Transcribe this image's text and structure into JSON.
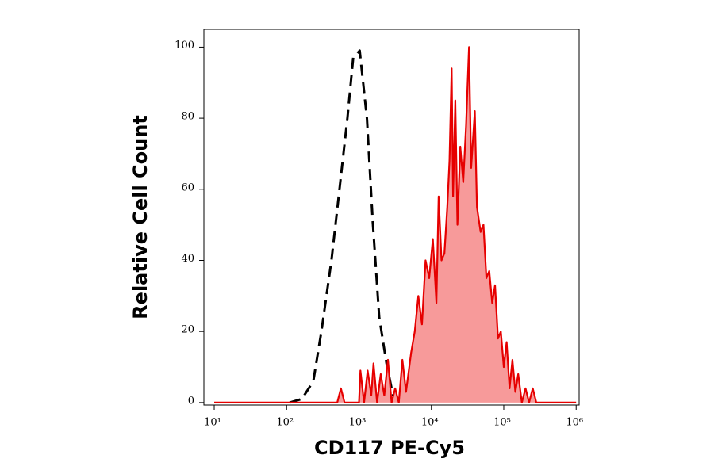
{
  "chart_data": {
    "type": "line",
    "x_label": "CD117 PE-Cy5",
    "y_label": "Relative Cell Count",
    "xscale": "log",
    "xlim": [
      7.2,
      1100000
    ],
    "ylim": [
      -0.7,
      105
    ],
    "xticks": [
      {
        "value": 10,
        "label": "10¹"
      },
      {
        "value": 100,
        "label": "10²"
      },
      {
        "value": 1000,
        "label": "10³"
      },
      {
        "value": 10000,
        "label": "10⁴"
      },
      {
        "value": 100000,
        "label": "10⁵"
      },
      {
        "value": 1000000,
        "label": "10⁶"
      }
    ],
    "yticks": [
      0,
      20,
      40,
      60,
      80,
      100
    ],
    "series": [
      {
        "color": "#000000",
        "dashed": true,
        "filled": false,
        "x": [
          110,
          162,
          234,
          302,
          417,
          537,
          692,
          832,
          1023,
          1288,
          1549,
          1905,
          2399,
          2951,
          4266
        ],
        "values": [
          0,
          1,
          6,
          20,
          40,
          60,
          80,
          97,
          99,
          80,
          51,
          24,
          11,
          2,
          0
        ]
      },
      {
        "color": "#e60000",
        "fill": "#f79a9a",
        "dashed": false,
        "filled": true,
        "x": [
          10,
          501,
          562,
          631,
          1000,
          1047,
          1175,
          1318,
          1479,
          1585,
          1778,
          1995,
          2239,
          2512,
          2818,
          3162,
          3548,
          3981,
          4467,
          5248,
          5888,
          6607,
          7413,
          8318,
          9333,
          10471,
          11749,
          12589,
          13804,
          15136,
          16596,
          17783,
          19055,
          19953,
          21380,
          22909,
          25119,
          27542,
          30200,
          33113,
          35481,
          39811,
          42658,
          47863,
          52481,
          57544,
          63096,
          69183,
          75858,
          83176,
          91201,
          100000,
          109648,
          120226,
          131826,
          144544,
          158489,
          177828,
          199526,
          223872,
          251189,
          281838,
          1000000
        ],
        "values": [
          0,
          0,
          4,
          0,
          0,
          9,
          0,
          9,
          2,
          11,
          0,
          8,
          2,
          12,
          0,
          4,
          0,
          12,
          3,
          14,
          20,
          30,
          22,
          40,
          35,
          46,
          28,
          58,
          40,
          42,
          55,
          68,
          94,
          58,
          85,
          50,
          72,
          62,
          78,
          100,
          66,
          82,
          55,
          48,
          50,
          35,
          37,
          28,
          33,
          18,
          20,
          10,
          17,
          4,
          12,
          3,
          8,
          0,
          4,
          0,
          4,
          0,
          0
        ]
      }
    ]
  }
}
